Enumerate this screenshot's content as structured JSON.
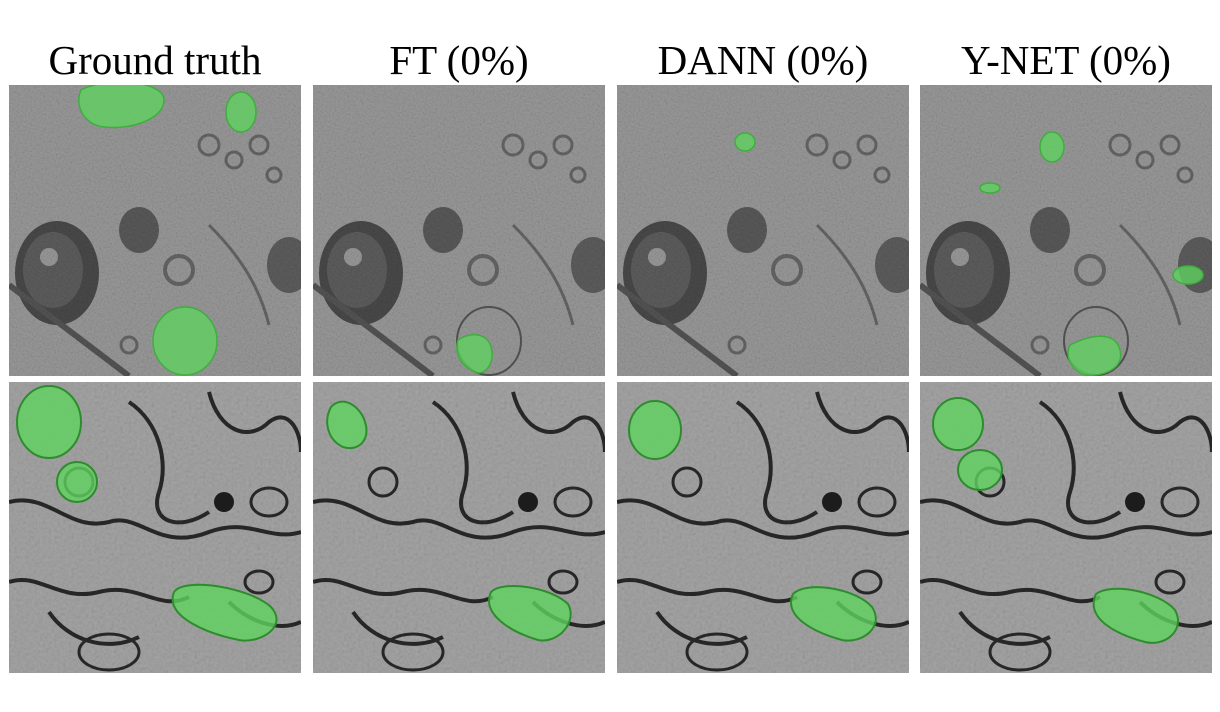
{
  "figure": {
    "column_titles": [
      "Ground truth",
      "FT (0%)",
      "DANN (0%)",
      "Y-NET (0%)"
    ],
    "rows": [
      {
        "name": "top-row",
        "tissue": "dense granular cytoplasm",
        "columns": [
          {
            "mitochondria": "all-labeled"
          },
          {
            "mitochondria": "partial-bottom"
          },
          {
            "mitochondria": "small-upper"
          },
          {
            "mitochondria": "partial-multiple"
          }
        ]
      },
      {
        "name": "bottom-row",
        "tissue": "neuropil with membranes",
        "columns": [
          {
            "mitochondria": "all-labeled"
          },
          {
            "mitochondria": "partial-left-and-bottom"
          },
          {
            "mitochondria": "left-and-bottom"
          },
          {
            "mitochondria": "three-labeled"
          }
        ]
      }
    ],
    "colors": {
      "mask": "#5fd35f",
      "mask_stroke": "#3fae3f",
      "background": "#ffffff",
      "em_base": "#8c8c8c"
    }
  }
}
